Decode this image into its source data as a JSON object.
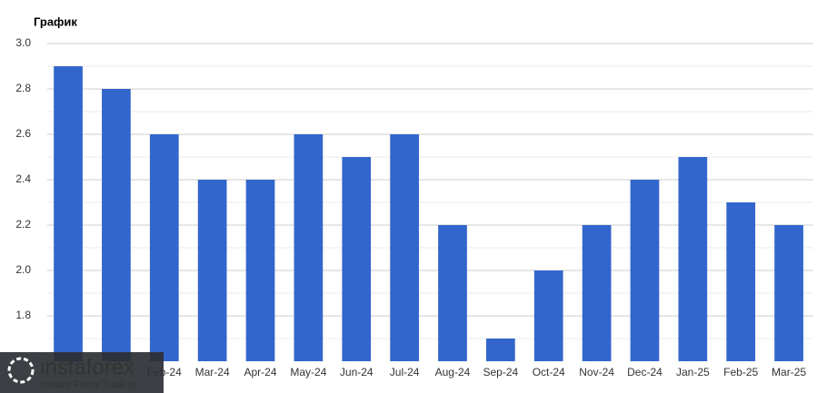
{
  "chart_data": {
    "type": "bar",
    "title": "График",
    "categories": [
      null,
      null,
      "Feb-24",
      "Mar-24",
      "Apr-24",
      "May-24",
      "Jun-24",
      "Jul-24",
      "Aug-24",
      "Sep-24",
      "Oct-24",
      "Nov-24",
      "Dec-24",
      "Jan-25",
      "Feb-25",
      "Mar-25"
    ],
    "values": [
      2.9,
      2.8,
      2.6,
      2.4,
      2.4,
      2.6,
      2.5,
      2.6,
      2.2,
      1.7,
      2.0,
      2.2,
      2.4,
      2.5,
      2.3,
      2.2
    ],
    "color": "#3366cc",
    "ylim": [
      1.6,
      3.0
    ],
    "yticks": [
      1.8,
      {
        "value": 2.0,
        "label": "2.0"
      },
      2.2,
      2.4,
      2.6,
      2.8,
      {
        "value": 3.0,
        "label": "3.0"
      }
    ],
    "grid": true
  },
  "watermark": {
    "name": "instaforex",
    "tagline": "Instant Forex Trading"
  }
}
